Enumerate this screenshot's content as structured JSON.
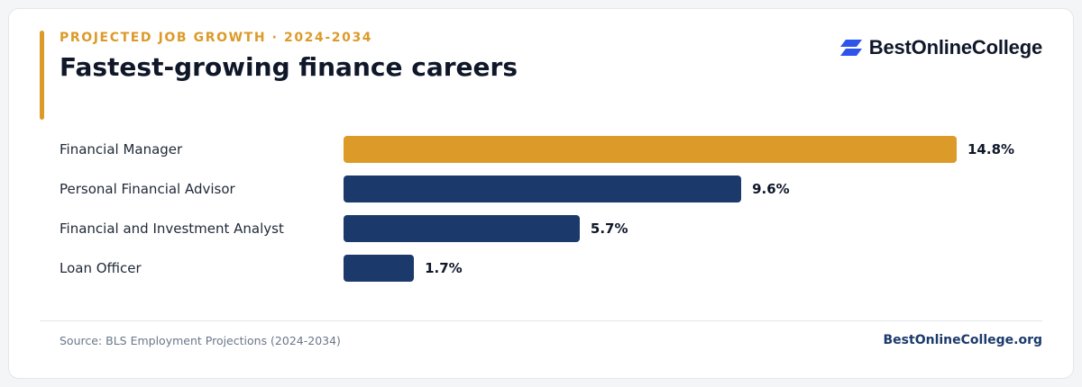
{
  "header": {
    "eyebrow": "PROJECTED JOB GROWTH · 2024-2034",
    "title": "Fastest-growing finance careers"
  },
  "brand": {
    "name": "BestOnlineCollege",
    "icon": "brand-logo-icon"
  },
  "footer": {
    "source": "Source: BLS Employment Projections (2024-2034)",
    "site": "BestOnlineCollege.org"
  },
  "colors": {
    "accent": "#dc9a28",
    "bar_primary": "#1b3a6b",
    "bar_highlight": "#dc9a28",
    "logo": "#2f54eb"
  },
  "chart_data": {
    "type": "bar",
    "orientation": "horizontal",
    "categories": [
      "Financial Manager",
      "Personal Financial Advisor",
      "Financial and Investment Analyst",
      "Loan Officer"
    ],
    "values": [
      14.8,
      9.6,
      5.7,
      1.7
    ],
    "value_labels": [
      "14.8%",
      "9.6%",
      "5.7%",
      "1.7%"
    ],
    "highlight_index": 0,
    "unit": "%",
    "xlim": [
      0,
      14.8
    ],
    "grid": false,
    "legend": "none"
  }
}
